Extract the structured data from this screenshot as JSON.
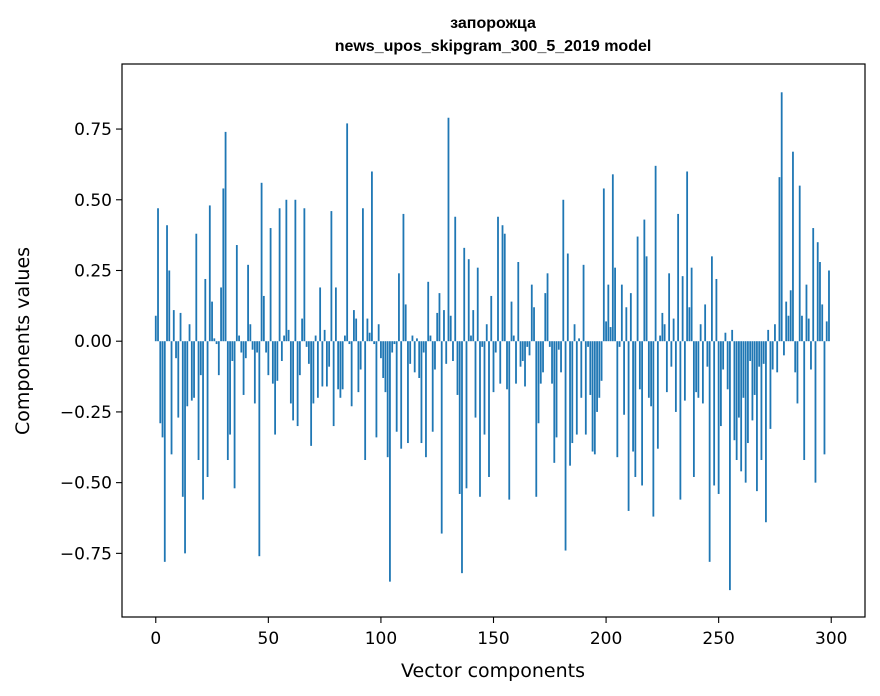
{
  "chart_data": {
    "type": "bar",
    "title": "запорожца",
    "subtitle": "news_upos_skipgram_300_5_2019 model",
    "xlabel": "Vector components",
    "ylabel": "Components values",
    "xlim": [
      -15,
      315
    ],
    "ylim": [
      -0.975,
      0.98
    ],
    "xticks": [
      0,
      50,
      100,
      150,
      200,
      250,
      300
    ],
    "xtick_labels": [
      "0",
      "50",
      "100",
      "150",
      "200",
      "250",
      "300"
    ],
    "yticks": [
      -0.75,
      -0.5,
      -0.25,
      0.0,
      0.25,
      0.5,
      0.75
    ],
    "ytick_labels": [
      "−0.75",
      "−0.50",
      "−0.25",
      "0.00",
      "0.25",
      "0.50",
      "0.75"
    ],
    "bar_color": "#1f77b4",
    "x": "indices 0..299",
    "values": [
      0.09,
      0.47,
      -0.29,
      -0.34,
      -0.78,
      0.41,
      0.25,
      -0.4,
      0.11,
      -0.06,
      -0.27,
      0.1,
      -0.55,
      -0.75,
      -0.23,
      0.06,
      -0.21,
      -0.2,
      0.38,
      -0.42,
      -0.12,
      -0.56,
      0.22,
      -0.48,
      0.48,
      0.14,
      0.01,
      -0.01,
      -0.12,
      0.19,
      0.54,
      0.74,
      -0.42,
      -0.33,
      -0.07,
      -0.52,
      0.34,
      0.02,
      -0.04,
      -0.19,
      -0.06,
      0.27,
      0.06,
      -0.03,
      -0.22,
      -0.04,
      -0.76,
      0.56,
      0.16,
      -0.04,
      -0.12,
      0.4,
      -0.15,
      -0.33,
      -0.14,
      0.47,
      -0.07,
      0.02,
      0.5,
      0.04,
      -0.22,
      -0.28,
      0.5,
      -0.3,
      -0.12,
      0.08,
      0.47,
      -0.02,
      -0.08,
      -0.37,
      -0.22,
      0.02,
      -0.2,
      0.19,
      -0.16,
      0.04,
      -0.16,
      -0.09,
      0.46,
      -0.3,
      0.19,
      -0.17,
      -0.2,
      -0.17,
      0.02,
      0.77,
      -0.01,
      -0.23,
      0.11,
      0.08,
      -0.18,
      -0.1,
      0.47,
      -0.42,
      0.08,
      0.03,
      0.6,
      -0.01,
      -0.34,
      0.06,
      -0.06,
      -0.13,
      -0.18,
      -0.41,
      -0.85,
      -0.04,
      -0.01,
      -0.32,
      0.24,
      -0.38,
      0.45,
      0.13,
      -0.36,
      -0.08,
      0.02,
      -0.11,
      0.01,
      -0.13,
      -0.36,
      -0.04,
      -0.41,
      0.21,
      0.02,
      -0.32,
      -0.1,
      0.1,
      0.17,
      -0.68,
      0.11,
      -0.08,
      0.79,
      0.09,
      -0.07,
      0.44,
      -0.19,
      -0.54,
      -0.82,
      0.33,
      -0.52,
      0.29,
      0.02,
      0.11,
      -0.27,
      0.26,
      -0.55,
      -0.02,
      -0.33,
      0.06,
      -0.48,
      0.16,
      -0.18,
      -0.04,
      0.44,
      -0.15,
      0.41,
      0.38,
      -0.17,
      -0.56,
      0.14,
      0.02,
      -0.15,
      0.28,
      -0.09,
      -0.07,
      -0.16,
      -0.02,
      -0.05,
      0.2,
      0.12,
      -0.55,
      -0.29,
      -0.15,
      -0.11,
      0.17,
      0.24,
      -0.02,
      -0.15,
      -0.43,
      -0.34,
      -0.03,
      -0.11,
      0.5,
      -0.74,
      0.31,
      -0.44,
      -0.36,
      0.06,
      -0.33,
      0.01,
      -0.2,
      0.27,
      -0.33,
      -0.02,
      -0.19,
      -0.39,
      -0.4,
      -0.25,
      -0.2,
      -0.14,
      0.54,
      0.07,
      0.2,
      0.05,
      0.59,
      0.26,
      -0.41,
      -0.02,
      0.2,
      -0.26,
      0.12,
      -0.6,
      0.17,
      -0.39,
      -0.48,
      0.37,
      -0.17,
      -0.51,
      0.43,
      0.3,
      -0.2,
      -0.23,
      -0.62,
      0.62,
      -0.38,
      0.02,
      0.1,
      0.06,
      -0.18,
      0.24,
      -0.09,
      0.08,
      -0.25,
      0.45,
      -0.56,
      0.23,
      -0.21,
      0.6,
      0.12,
      0.26,
      -0.48,
      -0.18,
      -0.2,
      0.06,
      -0.22,
      0.13,
      -0.09,
      -0.78,
      0.3,
      -0.51,
      0.22,
      -0.54,
      -0.3,
      -0.1,
      0.03,
      -0.17,
      -0.88,
      0.04,
      -0.35,
      -0.42,
      -0.27,
      -0.46,
      -0.2,
      -0.5,
      -0.36,
      -0.07,
      -0.28,
      -0.19,
      -0.53,
      -0.09,
      -0.42,
      -0.08,
      -0.64,
      0.04,
      -0.31,
      -0.1,
      0.06,
      -0.11,
      0.58,
      0.88,
      -0.05,
      0.14,
      0.09,
      0.18,
      0.67,
      -0.11,
      -0.22,
      0.55,
      0.09,
      -0.42,
      0.2,
      0.08,
      -0.1,
      0.4,
      -0.5,
      0.35,
      0.28,
      0.13,
      -0.4,
      0.07,
      0.25
    ]
  }
}
